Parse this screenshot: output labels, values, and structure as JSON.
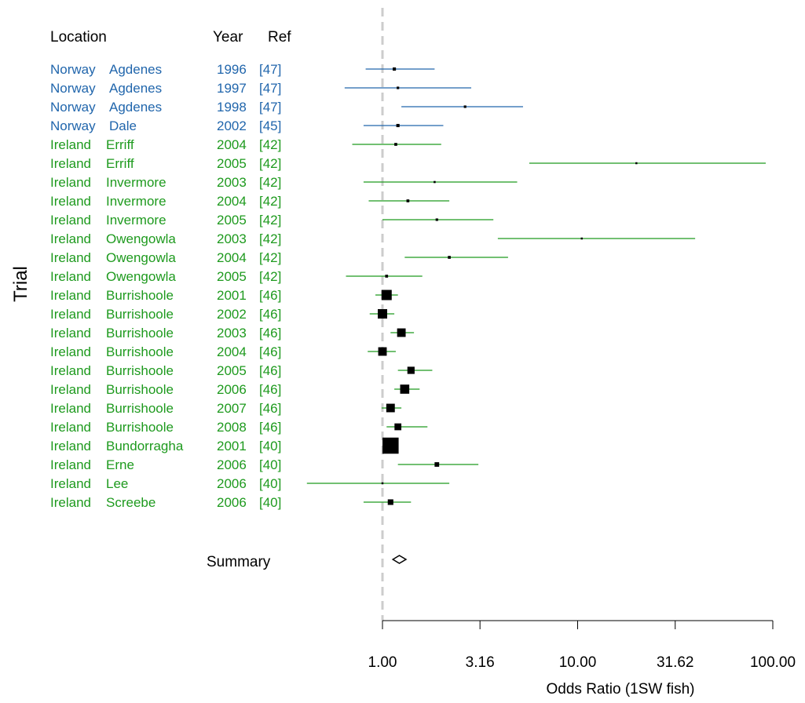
{
  "colors": {
    "norway": "#2166ac",
    "ireland": "#1e9a1e",
    "reference_line": "#cccccc",
    "marks": "#000000"
  },
  "chart_data": {
    "type": "forest",
    "ylabel": "Trial",
    "xlabel": "Odds Ratio (1SW fish)",
    "x_scale": "log10",
    "xlim": [
      1,
      100
    ],
    "x_ticks": [
      "1.00",
      "3.16",
      "10.00",
      "31.62",
      "100.00"
    ],
    "reference_line": 1,
    "headers": {
      "location": "Location",
      "year": "Year",
      "ref": "Ref"
    },
    "trials": [
      {
        "country": "Norway",
        "site": "Agdenes",
        "year": "1996",
        "ref": "[47]",
        "or": 1.15,
        "lo": 0.82,
        "hi": 1.85,
        "weight": 0.1
      },
      {
        "country": "Norway",
        "site": "Agdenes",
        "year": "1997",
        "ref": "[47]",
        "or": 1.2,
        "lo": 0.64,
        "hi": 2.85,
        "weight": 0.06
      },
      {
        "country": "Norway",
        "site": "Agdenes",
        "year": "1998",
        "ref": "[47]",
        "or": 2.65,
        "lo": 1.25,
        "hi": 5.25,
        "weight": 0.06
      },
      {
        "country": "Norway",
        "site": "Dale",
        "year": "2002",
        "ref": "[45]",
        "or": 1.2,
        "lo": 0.8,
        "hi": 2.05,
        "weight": 0.1
      },
      {
        "country": "Ireland",
        "site": "Erriff",
        "year": "2004",
        "ref": "[42]",
        "or": 1.17,
        "lo": 0.7,
        "hi": 2.0,
        "weight": 0.08
      },
      {
        "country": "Ireland",
        "site": "Erriff",
        "year": "2005",
        "ref": "[42]",
        "or": 20.0,
        "lo": 5.65,
        "hi": 92.0,
        "weight": 0.03
      },
      {
        "country": "Ireland",
        "site": "Invermore",
        "year": "2003",
        "ref": "[42]",
        "or": 1.85,
        "lo": 0.8,
        "hi": 4.9,
        "weight": 0.04
      },
      {
        "country": "Ireland",
        "site": "Invermore",
        "year": "2004",
        "ref": "[42]",
        "or": 1.35,
        "lo": 0.85,
        "hi": 2.2,
        "weight": 0.08
      },
      {
        "country": "Ireland",
        "site": "Invermore",
        "year": "2005",
        "ref": "[42]",
        "or": 1.9,
        "lo": 1.0,
        "hi": 3.7,
        "weight": 0.06
      },
      {
        "country": "Ireland",
        "site": "Owengowla",
        "year": "2003",
        "ref": "[42]",
        "or": 10.5,
        "lo": 3.9,
        "hi": 40.0,
        "weight": 0.03
      },
      {
        "country": "Ireland",
        "site": "Owengowla",
        "year": "2004",
        "ref": "[42]",
        "or": 2.2,
        "lo": 1.3,
        "hi": 4.4,
        "weight": 0.08
      },
      {
        "country": "Ireland",
        "site": "Owengowla",
        "year": "2005",
        "ref": "[42]",
        "or": 1.05,
        "lo": 0.65,
        "hi": 1.6,
        "weight": 0.08
      },
      {
        "country": "Ireland",
        "site": "Burrishoole",
        "year": "2001",
        "ref": "[46]",
        "or": 1.05,
        "lo": 0.92,
        "hi": 1.2,
        "weight": 1.0
      },
      {
        "country": "Ireland",
        "site": "Burrishoole",
        "year": "2002",
        "ref": "[46]",
        "or": 1.0,
        "lo": 0.86,
        "hi": 1.15,
        "weight": 0.85
      },
      {
        "country": "Ireland",
        "site": "Burrishoole",
        "year": "2003",
        "ref": "[46]",
        "or": 1.25,
        "lo": 1.1,
        "hi": 1.45,
        "weight": 0.7
      },
      {
        "country": "Ireland",
        "site": "Burrishoole",
        "year": "2004",
        "ref": "[46]",
        "or": 1.0,
        "lo": 0.84,
        "hi": 1.17,
        "weight": 0.7
      },
      {
        "country": "Ireland",
        "site": "Burrishoole",
        "year": "2005",
        "ref": "[46]",
        "or": 1.4,
        "lo": 1.2,
        "hi": 1.8,
        "weight": 0.5
      },
      {
        "country": "Ireland",
        "site": "Burrishoole",
        "year": "2006",
        "ref": "[46]",
        "or": 1.3,
        "lo": 1.15,
        "hi": 1.55,
        "weight": 0.8
      },
      {
        "country": "Ireland",
        "site": "Burrishoole",
        "year": "2007",
        "ref": "[46]",
        "or": 1.1,
        "lo": 0.99,
        "hi": 1.25,
        "weight": 0.7
      },
      {
        "country": "Ireland",
        "site": "Burrishoole",
        "year": "2008",
        "ref": "[46]",
        "or": 1.2,
        "lo": 1.05,
        "hi": 1.7,
        "weight": 0.45
      },
      {
        "country": "Ireland",
        "site": "Bundorragha",
        "year": "2001",
        "ref": "[40]",
        "or": 1.1,
        "lo": 1.02,
        "hi": 1.2,
        "weight": 2.5
      },
      {
        "country": "Ireland",
        "site": "Erne",
        "year": "2006",
        "ref": "[40]",
        "or": 1.9,
        "lo": 1.2,
        "hi": 3.1,
        "weight": 0.2
      },
      {
        "country": "Ireland",
        "site": "Lee",
        "year": "2006",
        "ref": "[40]",
        "or": 1.0,
        "lo": 0.41,
        "hi": 2.2,
        "weight": 0.03
      },
      {
        "country": "Ireland",
        "site": "Screebe",
        "year": "2006",
        "ref": "[40]",
        "or": 1.1,
        "lo": 0.8,
        "hi": 1.4,
        "weight": 0.3
      }
    ],
    "summary": {
      "label": "Summary",
      "or": 1.22,
      "lo": 1.13,
      "hi": 1.32
    }
  }
}
